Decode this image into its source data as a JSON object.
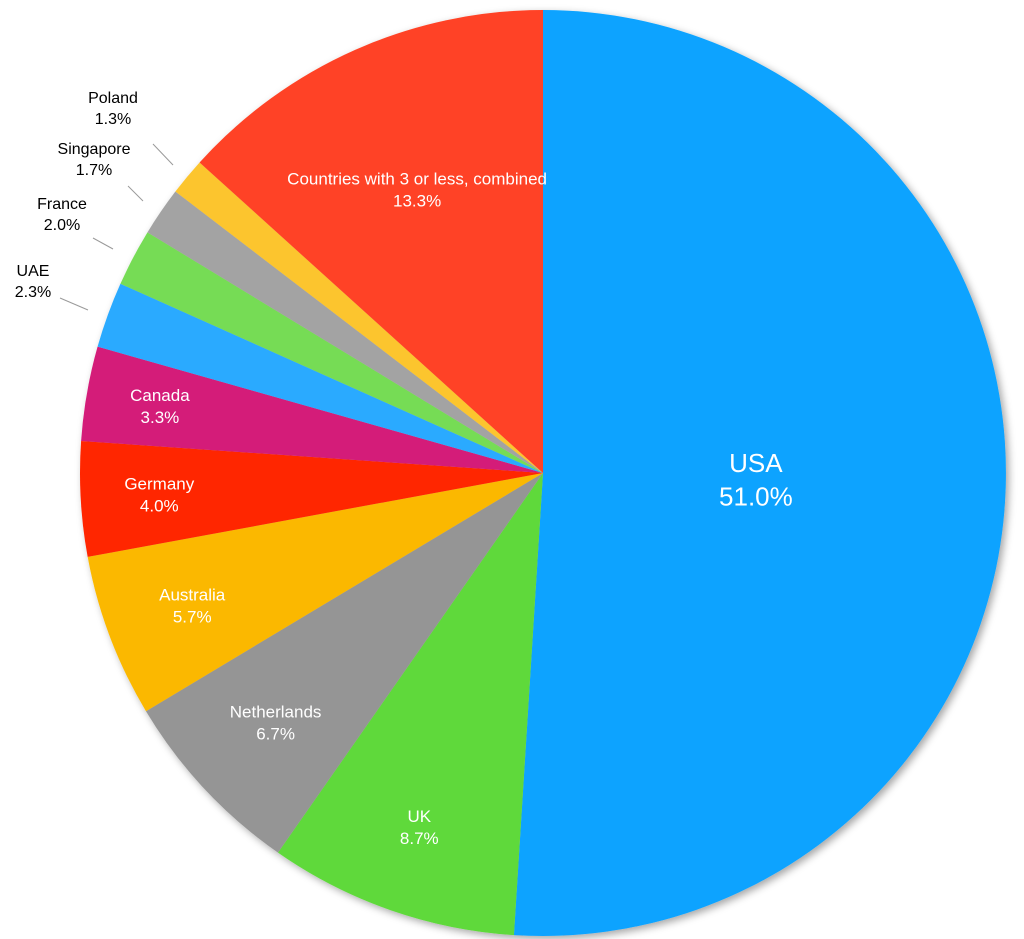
{
  "chart_data": {
    "type": "pie",
    "title": "",
    "start": "top, clockwise",
    "slices": [
      {
        "name": "USA",
        "value": 51.0,
        "label": "51.0%",
        "color": "#0ba3ff",
        "label_inside": true
      },
      {
        "name": "UK",
        "value": 8.7,
        "label": "8.7%",
        "color": "#5ed93a",
        "label_inside": true
      },
      {
        "name": "Netherlands",
        "value": 6.7,
        "label": "6.7%",
        "color": "#959595",
        "label_inside": true
      },
      {
        "name": "Australia",
        "value": 5.7,
        "label": "5.7%",
        "color": "#fbb800",
        "label_inside": true
      },
      {
        "name": "Germany",
        "value": 4.0,
        "label": "4.0%",
        "color": "#ff2600",
        "label_inside": true
      },
      {
        "name": "Canada",
        "value": 3.3,
        "label": "3.3%",
        "color": "#d41a79",
        "label_inside": true
      },
      {
        "name": "UAE",
        "value": 2.3,
        "label": "2.3%",
        "color": "#2aaaff",
        "label_inside": false
      },
      {
        "name": "France",
        "value": 2.0,
        "label": "2.0%",
        "color": "#76dc54",
        "label_inside": false
      },
      {
        "name": "Singapore",
        "value": 1.7,
        "label": "1.7%",
        "color": "#a3a3a3",
        "label_inside": false
      },
      {
        "name": "Poland",
        "value": 1.3,
        "label": "1.3%",
        "color": "#fcc52f",
        "label_inside": false
      },
      {
        "name": "Countries with 3 or less, combined",
        "value": 13.3,
        "label": "13.3%",
        "color": "#ff4325",
        "label_inside": true
      }
    ]
  }
}
